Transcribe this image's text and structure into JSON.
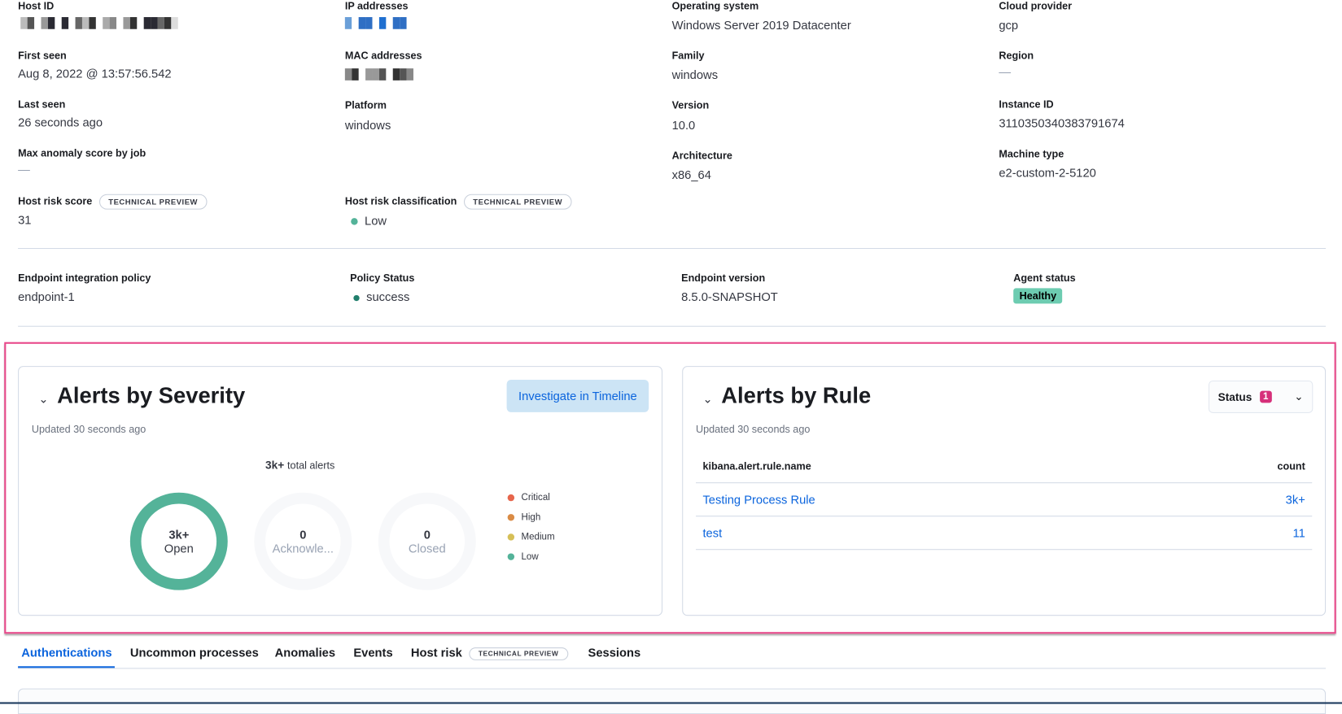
{
  "host": {
    "host_id": {
      "label": "Host ID"
    },
    "ip_addresses": {
      "label": "IP addresses"
    },
    "operating_system": {
      "label": "Operating system",
      "value": "Windows Server 2019 Datacenter"
    },
    "cloud_provider": {
      "label": "Cloud provider",
      "value": "gcp"
    },
    "first_seen": {
      "label": "First seen",
      "value": "Aug 8, 2022 @ 13:57:56.542"
    },
    "mac_addresses": {
      "label": "MAC addresses"
    },
    "family": {
      "label": "Family",
      "value": "windows"
    },
    "region": {
      "label": "Region",
      "value": "—"
    },
    "last_seen": {
      "label": "Last seen",
      "value": "26 seconds ago"
    },
    "platform": {
      "label": "Platform",
      "value": "windows"
    },
    "version": {
      "label": "Version",
      "value": "10.0"
    },
    "instance_id": {
      "label": "Instance ID",
      "value": "3110350340383791674"
    },
    "max_anomaly": {
      "label": "Max anomaly score by job",
      "value": "—"
    },
    "architecture": {
      "label": "Architecture",
      "value": "x86_64"
    },
    "machine_type": {
      "label": "Machine type",
      "value": "e2-custom-2-5120"
    },
    "risk_score": {
      "label": "Host risk score",
      "badge": "TECHNICAL PREVIEW",
      "value": "31"
    },
    "risk_classification": {
      "label": "Host risk classification",
      "badge": "TECHNICAL PREVIEW",
      "value": "Low",
      "color": "#54b399"
    }
  },
  "endpoint": {
    "policy": {
      "label": "Endpoint integration policy",
      "value": "endpoint-1"
    },
    "policy_status": {
      "label": "Policy Status",
      "value": "success",
      "color": "#207f6c"
    },
    "version": {
      "label": "Endpoint version",
      "value": "8.5.0-SNAPSHOT"
    },
    "agent_status": {
      "label": "Agent status",
      "value": "Healthy",
      "color": "#6dccb1"
    }
  },
  "severity_panel": {
    "title": "Alerts by Severity",
    "updated": "Updated 30 seconds ago",
    "investigate_button": "Investigate in Timeline",
    "total": "3k+",
    "total_suffix": "total alerts",
    "donuts": [
      {
        "value": "3k+",
        "label": "Open"
      },
      {
        "value": "0",
        "label": "Acknowle..."
      },
      {
        "value": "0",
        "label": "Closed"
      }
    ],
    "legend": [
      {
        "label": "Critical",
        "color": "#e7664c"
      },
      {
        "label": "High",
        "color": "#da8b45"
      },
      {
        "label": "Medium",
        "color": "#d6bf57"
      },
      {
        "label": "Low",
        "color": "#54b399"
      }
    ]
  },
  "rule_panel": {
    "title": "Alerts by Rule",
    "updated": "Updated 30 seconds ago",
    "status_filter": "Status",
    "status_count": "1",
    "columns": [
      "kibana.alert.rule.name",
      "count"
    ],
    "rows": [
      {
        "name": "Testing Process Rule",
        "count": "3k+"
      },
      {
        "name": "test",
        "count": "11"
      }
    ]
  },
  "tabs": [
    {
      "label": "Authentications",
      "active": true
    },
    {
      "label": "Uncommon processes"
    },
    {
      "label": "Anomalies"
    },
    {
      "label": "Events"
    },
    {
      "label": "Host risk",
      "badge": "TECHNICAL PREVIEW"
    },
    {
      "label": "Sessions"
    }
  ]
}
